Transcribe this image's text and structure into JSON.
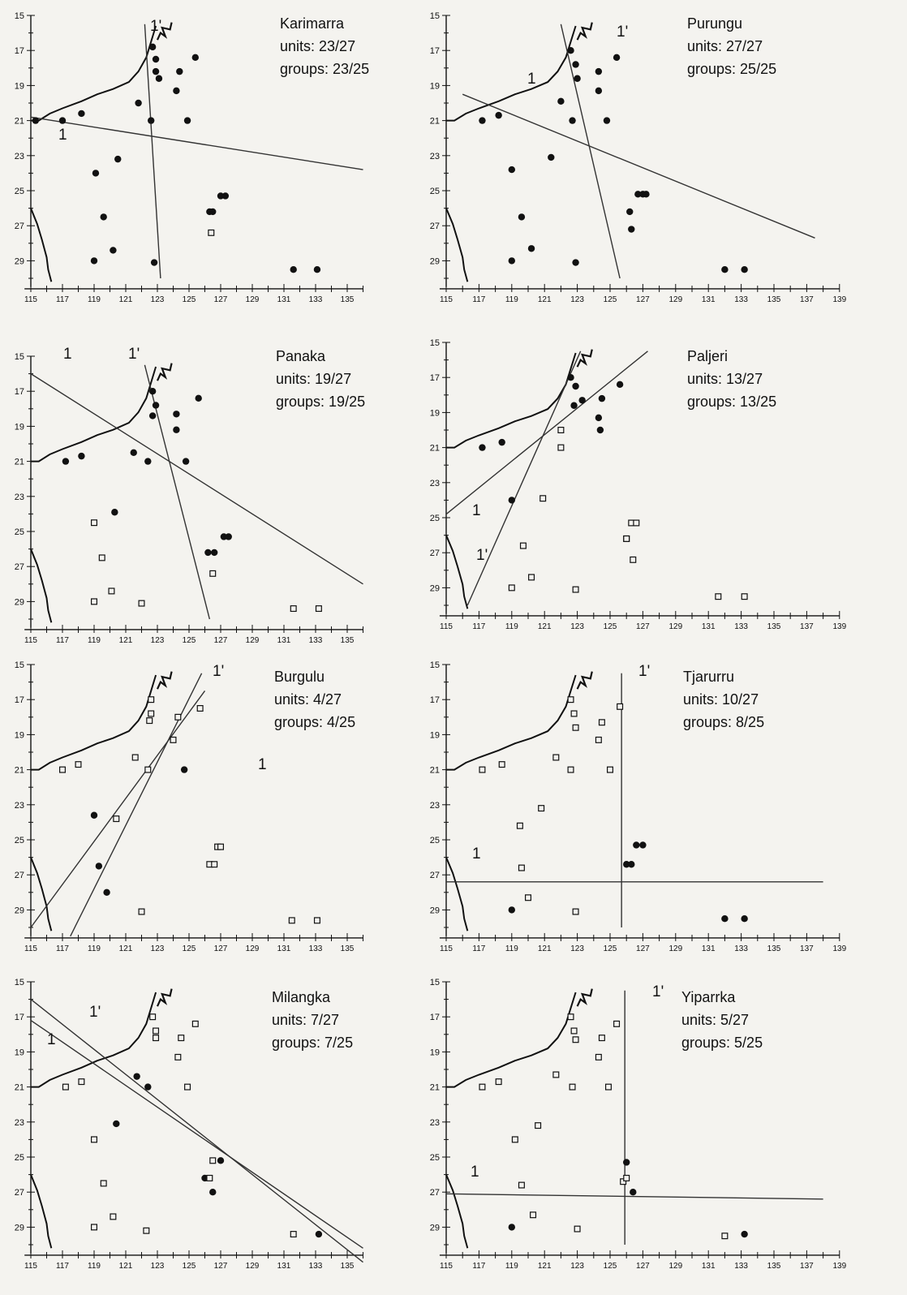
{
  "axis": {
    "y_ticks": [
      15,
      17,
      19,
      21,
      23,
      25,
      27,
      29
    ],
    "x_ticks_short": [
      115,
      117,
      119,
      121,
      123,
      125,
      127,
      129,
      131,
      133,
      135
    ],
    "x_ticks_long": [
      115,
      117,
      119,
      121,
      123,
      125,
      127,
      129,
      131,
      133,
      135,
      137,
      139
    ]
  },
  "labels": {
    "units_prefix": "units: ",
    "groups_prefix": "groups: ",
    "line1": "1",
    "line2": "1'"
  },
  "colors": {
    "ink": "#111111",
    "paper": "#f4f3ef"
  },
  "chart_data": [
    {
      "type": "scatter",
      "name": "Karimarra",
      "units": "23/27",
      "groups": "23/25",
      "xlim": [
        115,
        136
      ],
      "ylim": [
        15,
        30
      ],
      "y_reversed": true,
      "points_filled": [
        [
          115.3,
          21
        ],
        [
          117.0,
          21
        ],
        [
          118.2,
          20.6
        ],
        [
          119.1,
          24.0
        ],
        [
          120.5,
          23.2
        ],
        [
          119.6,
          26.5
        ],
        [
          120.2,
          28.4
        ],
        [
          119.0,
          29.0
        ],
        [
          121.8,
          20.0
        ],
        [
          122.7,
          16.8
        ],
        [
          122.9,
          17.5
        ],
        [
          122.9,
          18.2
        ],
        [
          123.1,
          18.6
        ],
        [
          122.6,
          21.0
        ],
        [
          124.2,
          19.3
        ],
        [
          124.4,
          18.2
        ],
        [
          124.9,
          21.0
        ],
        [
          125.4,
          17.4
        ],
        [
          126.3,
          26.2
        ],
        [
          126.5,
          26.2
        ],
        [
          127.3,
          25.3
        ],
        [
          127.0,
          25.3
        ],
        [
          122.8,
          29.1
        ],
        [
          131.6,
          29.5
        ],
        [
          133.1,
          29.5
        ]
      ],
      "points_open": [
        [
          126.4,
          27.4
        ]
      ],
      "line1": [
        [
          115.0,
          20.8
        ],
        [
          136.0,
          23.8
        ]
      ],
      "line2": [
        [
          122.2,
          15.5
        ],
        [
          123.2,
          30.0
        ]
      ]
    },
    {
      "type": "scatter",
      "name": "Purungu",
      "units": "27/27",
      "groups": "25/25",
      "xlim": [
        115,
        139
      ],
      "ylim": [
        15,
        30
      ],
      "y_reversed": true,
      "points_filled": [
        [
          117.2,
          21
        ],
        [
          118.2,
          20.7
        ],
        [
          119.0,
          23.8
        ],
        [
          119.6,
          26.5
        ],
        [
          120.2,
          28.3
        ],
        [
          119.0,
          29.0
        ],
        [
          121.4,
          23.1
        ],
        [
          122.0,
          19.9
        ],
        [
          122.6,
          17.0
        ],
        [
          122.9,
          17.8
        ],
        [
          123.0,
          18.6
        ],
        [
          122.7,
          21.0
        ],
        [
          124.3,
          19.3
        ],
        [
          124.3,
          18.2
        ],
        [
          124.8,
          21.0
        ],
        [
          125.4,
          17.4
        ],
        [
          126.2,
          26.2
        ],
        [
          126.7,
          25.2
        ],
        [
          127.0,
          25.2
        ],
        [
          127.2,
          25.2
        ],
        [
          126.3,
          27.2
        ],
        [
          122.9,
          29.1
        ],
        [
          132.0,
          29.5
        ],
        [
          133.2,
          29.5
        ]
      ],
      "points_open": [],
      "line1": [
        [
          116.0,
          19.5
        ],
        [
          137.5,
          27.7
        ]
      ],
      "line2": [
        [
          122.0,
          15.5
        ],
        [
          125.6,
          30.0
        ]
      ]
    },
    {
      "type": "scatter",
      "name": "Panaka",
      "units": "19/27",
      "groups": "19/25",
      "xlim": [
        115,
        136
      ],
      "ylim": [
        15,
        30
      ],
      "y_reversed": true,
      "points_filled": [
        [
          117.2,
          21
        ],
        [
          118.2,
          20.7
        ],
        [
          120.3,
          23.9
        ],
        [
          121.5,
          20.5
        ],
        [
          122.7,
          17.0
        ],
        [
          122.9,
          17.8
        ],
        [
          122.7,
          18.4
        ],
        [
          122.4,
          21.0
        ],
        [
          124.2,
          19.2
        ],
        [
          124.2,
          18.3
        ],
        [
          124.8,
          21.0
        ],
        [
          125.6,
          17.4
        ],
        [
          126.6,
          26.2
        ],
        [
          126.2,
          26.2
        ],
        [
          127.2,
          25.3
        ],
        [
          127.5,
          25.3
        ]
      ],
      "points_open": [
        [
          119.0,
          24.5
        ],
        [
          119.5,
          26.5
        ],
        [
          120.1,
          28.4
        ],
        [
          119.0,
          29.0
        ],
        [
          122.0,
          29.1
        ],
        [
          126.5,
          27.4
        ],
        [
          131.6,
          29.4
        ],
        [
          133.2,
          29.4
        ]
      ],
      "line1": [
        [
          115.0,
          16.0
        ],
        [
          136.0,
          28.0
        ]
      ],
      "line2": [
        [
          122.2,
          15.5
        ],
        [
          126.3,
          30.0
        ]
      ]
    },
    {
      "type": "scatter",
      "name": "Paljeri",
      "units": "13/27",
      "groups": "13/25",
      "xlim": [
        115,
        139
      ],
      "ylim": [
        15,
        30
      ],
      "y_reversed": true,
      "points_filled": [
        [
          117.2,
          21
        ],
        [
          118.4,
          20.7
        ],
        [
          119.0,
          24.0
        ],
        [
          122.6,
          17.0
        ],
        [
          122.9,
          17.5
        ],
        [
          123.3,
          18.3
        ],
        [
          122.8,
          18.6
        ],
        [
          124.3,
          19.3
        ],
        [
          124.5,
          18.2
        ],
        [
          125.6,
          17.4
        ],
        [
          124.4,
          20.0
        ]
      ],
      "points_open": [
        [
          119.7,
          26.6
        ],
        [
          120.2,
          28.4
        ],
        [
          119.0,
          29.0
        ],
        [
          122.0,
          20.0
        ],
        [
          122.0,
          21.0
        ],
        [
          120.9,
          23.9
        ],
        [
          122.9,
          29.1
        ],
        [
          126.0,
          26.2
        ],
        [
          126.4,
          27.4
        ],
        [
          126.3,
          25.3
        ],
        [
          126.6,
          25.3
        ],
        [
          126.0,
          26.2
        ],
        [
          131.6,
          29.5
        ],
        [
          133.2,
          29.5
        ]
      ],
      "line1": [
        [
          115.0,
          24.8
        ],
        [
          127.3,
          15.5
        ]
      ],
      "line2": [
        [
          116.3,
          30.0
        ],
        [
          123.2,
          15.5
        ]
      ]
    },
    {
      "type": "scatter",
      "name": "Burgulu",
      "units": "4/27",
      "groups": "4/25",
      "xlim": [
        115,
        136
      ],
      "ylim": [
        15,
        30
      ],
      "y_reversed": true,
      "points_filled": [
        [
          119.0,
          23.6
        ],
        [
          119.3,
          26.5
        ],
        [
          119.8,
          28.0
        ],
        [
          124.7,
          21.0
        ]
      ],
      "points_open": [
        [
          117.0,
          21.0
        ],
        [
          118.0,
          20.7
        ],
        [
          120.4,
          23.8
        ],
        [
          121.6,
          20.3
        ],
        [
          122.6,
          17.0
        ],
        [
          122.6,
          17.8
        ],
        [
          122.5,
          18.2
        ],
        [
          122.4,
          21.0
        ],
        [
          124.0,
          19.3
        ],
        [
          124.3,
          18.0
        ],
        [
          125.7,
          17.5
        ],
        [
          126.3,
          26.4
        ],
        [
          126.6,
          26.4
        ],
        [
          126.8,
          25.4
        ],
        [
          127.0,
          25.4
        ],
        [
          122.0,
          29.1
        ],
        [
          131.5,
          29.6
        ],
        [
          133.1,
          29.6
        ]
      ],
      "line1": [
        [
          115.0,
          30.0
        ],
        [
          126.0,
          16.5
        ]
      ],
      "line2": [
        [
          117.5,
          30.5
        ],
        [
          125.8,
          15.5
        ]
      ]
    },
    {
      "type": "scatter",
      "name": "Tjarurru",
      "units": "10/27",
      "groups": "8/25",
      "xlim": [
        115,
        139
      ],
      "ylim": [
        15,
        30
      ],
      "y_reversed": true,
      "points_filled": [
        [
          126.0,
          26.4
        ],
        [
          126.3,
          26.4
        ],
        [
          126.6,
          25.3
        ],
        [
          127.0,
          25.3
        ],
        [
          119.0,
          29.0
        ],
        [
          132.0,
          29.5
        ],
        [
          133.2,
          29.5
        ]
      ],
      "points_open": [
        [
          117.2,
          21.0
        ],
        [
          118.4,
          20.7
        ],
        [
          119.5,
          24.2
        ],
        [
          119.6,
          26.6
        ],
        [
          120.0,
          28.3
        ],
        [
          120.8,
          23.2
        ],
        [
          121.7,
          20.3
        ],
        [
          122.6,
          17.0
        ],
        [
          122.8,
          17.8
        ],
        [
          122.9,
          18.6
        ],
        [
          122.6,
          21.0
        ],
        [
          124.3,
          19.3
        ],
        [
          124.5,
          18.3
        ],
        [
          125.0,
          21.0
        ],
        [
          125.6,
          17.4
        ],
        [
          122.9,
          29.1
        ]
      ],
      "line1": [
        [
          115.0,
          27.4
        ],
        [
          138.0,
          27.4
        ]
      ],
      "line2": [
        [
          125.7,
          15.5
        ],
        [
          125.7,
          30.0
        ]
      ]
    },
    {
      "type": "scatter",
      "name": "Milangka",
      "units": "7/27",
      "groups": "7/25",
      "xlim": [
        115,
        136
      ],
      "ylim": [
        15,
        30
      ],
      "y_reversed": true,
      "points_filled": [
        [
          121.7,
          20.4
        ],
        [
          120.4,
          23.1
        ],
        [
          122.4,
          21.0
        ],
        [
          126.0,
          26.2
        ],
        [
          127.0,
          25.2
        ],
        [
          126.5,
          27.0
        ],
        [
          133.2,
          29.4
        ]
      ],
      "points_open": [
        [
          117.2,
          21.0
        ],
        [
          118.2,
          20.7
        ],
        [
          119.0,
          24.0
        ],
        [
          119.6,
          26.5
        ],
        [
          120.2,
          28.4
        ],
        [
          119.0,
          29.0
        ],
        [
          122.7,
          17.0
        ],
        [
          122.9,
          17.8
        ],
        [
          122.9,
          18.2
        ],
        [
          122.3,
          29.2
        ],
        [
          124.3,
          19.3
        ],
        [
          124.5,
          18.2
        ],
        [
          124.9,
          21.0
        ],
        [
          125.4,
          17.4
        ],
        [
          126.5,
          25.2
        ],
        [
          126.3,
          26.2
        ],
        [
          131.6,
          29.4
        ]
      ],
      "line1": [
        [
          115.0,
          16.0
        ],
        [
          136.0,
          31.0
        ]
      ],
      "line2": [
        [
          115.0,
          17.2
        ],
        [
          136.0,
          30.2
        ]
      ]
    },
    {
      "type": "scatter",
      "name": "Yiparrka",
      "units": "5/27",
      "groups": "5/25",
      "xlim": [
        115,
        139
      ],
      "ylim": [
        15,
        30
      ],
      "y_reversed": true,
      "points_filled": [
        [
          119.0,
          29.0
        ],
        [
          126.0,
          25.3
        ],
        [
          126.4,
          27.0
        ],
        [
          133.2,
          29.4
        ]
      ],
      "points_open": [
        [
          117.2,
          21.0
        ],
        [
          118.2,
          20.7
        ],
        [
          119.2,
          24.0
        ],
        [
          119.6,
          26.6
        ],
        [
          120.3,
          28.3
        ],
        [
          120.6,
          23.2
        ],
        [
          121.7,
          20.3
        ],
        [
          122.6,
          17.0
        ],
        [
          122.8,
          17.8
        ],
        [
          122.9,
          18.3
        ],
        [
          122.7,
          21.0
        ],
        [
          124.3,
          19.3
        ],
        [
          124.5,
          18.2
        ],
        [
          124.9,
          21.0
        ],
        [
          125.4,
          17.4
        ],
        [
          125.8,
          26.4
        ],
        [
          126.0,
          26.2
        ],
        [
          123.0,
          29.1
        ],
        [
          132.0,
          29.5
        ]
      ],
      "line1": [
        [
          115.0,
          27.1
        ],
        [
          138.0,
          27.4
        ]
      ],
      "line2": [
        [
          125.9,
          15.5
        ],
        [
          125.9,
          30.0
        ]
      ]
    }
  ]
}
